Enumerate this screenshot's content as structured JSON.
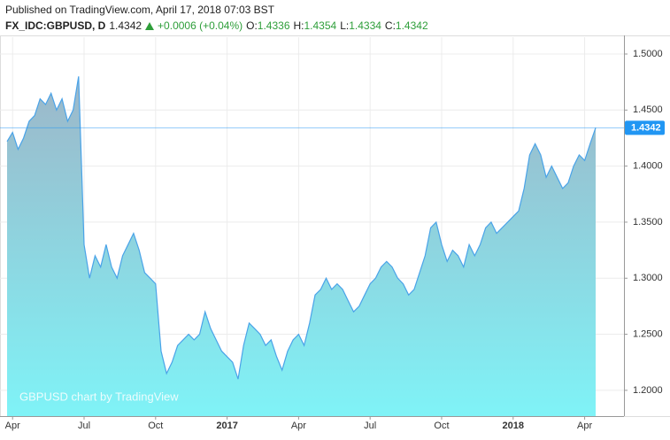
{
  "header": {
    "published": "Published on TradingView.com, April 17, 2018 07:03 BST",
    "symbol": "FX_IDC:GBPUSD, D",
    "last": "1.4342",
    "change": "+0.0006 (+0.04%)",
    "ohlc": [
      {
        "label": "O:",
        "value": "1.4336"
      },
      {
        "label": "H:",
        "value": "1.4354"
      },
      {
        "label": "L:",
        "value": "1.4334"
      },
      {
        "label": "C:",
        "value": "1.4342"
      }
    ]
  },
  "chart_data": {
    "type": "area",
    "watermark": "GBPUSD chart by TradingView",
    "categories": [
      null,
      "Apr",
      null,
      null,
      null,
      null,
      null,
      null,
      null,
      null,
      null,
      null,
      null,
      null,
      "Jul",
      null,
      null,
      null,
      null,
      null,
      null,
      null,
      null,
      null,
      null,
      null,
      null,
      "Oct",
      null,
      null,
      null,
      null,
      null,
      null,
      null,
      null,
      null,
      null,
      null,
      null,
      "2017",
      null,
      null,
      null,
      null,
      null,
      null,
      null,
      null,
      null,
      null,
      null,
      null,
      "Apr",
      null,
      null,
      null,
      null,
      null,
      null,
      null,
      null,
      null,
      null,
      null,
      null,
      "Jul",
      null,
      null,
      null,
      null,
      null,
      null,
      null,
      null,
      null,
      null,
      null,
      null,
      "Oct",
      null,
      null,
      null,
      null,
      null,
      null,
      null,
      null,
      null,
      null,
      null,
      null,
      "2018",
      null,
      null,
      null,
      null,
      null,
      null,
      null,
      null,
      null,
      null,
      null,
      null,
      "Apr",
      null,
      null
    ],
    "bold_categories": [
      "2017",
      "2018"
    ],
    "values": [
      1.422,
      1.43,
      1.415,
      1.425,
      1.44,
      1.445,
      1.46,
      1.455,
      1.465,
      1.45,
      1.46,
      1.44,
      1.45,
      1.48,
      1.33,
      1.3,
      1.32,
      1.31,
      1.33,
      1.31,
      1.3,
      1.32,
      1.33,
      1.34,
      1.325,
      1.305,
      1.3,
      1.295,
      1.235,
      1.215,
      1.225,
      1.24,
      1.245,
      1.25,
      1.245,
      1.25,
      1.27,
      1.255,
      1.245,
      1.235,
      1.23,
      1.225,
      1.21,
      1.24,
      1.26,
      1.255,
      1.25,
      1.24,
      1.245,
      1.23,
      1.218,
      1.235,
      1.245,
      1.25,
      1.24,
      1.26,
      1.285,
      1.29,
      1.3,
      1.29,
      1.295,
      1.29,
      1.28,
      1.27,
      1.275,
      1.285,
      1.295,
      1.3,
      1.31,
      1.315,
      1.31,
      1.3,
      1.295,
      1.285,
      1.29,
      1.305,
      1.32,
      1.345,
      1.35,
      1.33,
      1.315,
      1.325,
      1.32,
      1.31,
      1.33,
      1.32,
      1.33,
      1.345,
      1.35,
      1.34,
      1.345,
      1.35,
      1.355,
      1.36,
      1.38,
      1.41,
      1.42,
      1.41,
      1.39,
      1.4,
      1.39,
      1.38,
      1.385,
      1.4,
      1.41,
      1.405,
      1.42,
      1.4342
    ],
    "last_price": 1.4342,
    "color": "#4aa3e8",
    "fill_top": "#9db6c8",
    "fill_bottom": "#7ff3f7",
    "label_color": "#2196f3",
    "ylim": [
      1.177,
      1.515
    ],
    "yticks": [
      {
        "value": 1.2,
        "label": "1.2000"
      },
      {
        "value": 1.25,
        "label": "1.2500"
      },
      {
        "value": 1.3,
        "label": "1.3000"
      },
      {
        "value": 1.35,
        "label": "1.3500"
      },
      {
        "value": 1.4,
        "label": "1.4000"
      },
      {
        "value": 1.45,
        "label": "1.4500"
      },
      {
        "value": 1.5,
        "label": "1.5000"
      }
    ],
    "grid": true
  }
}
